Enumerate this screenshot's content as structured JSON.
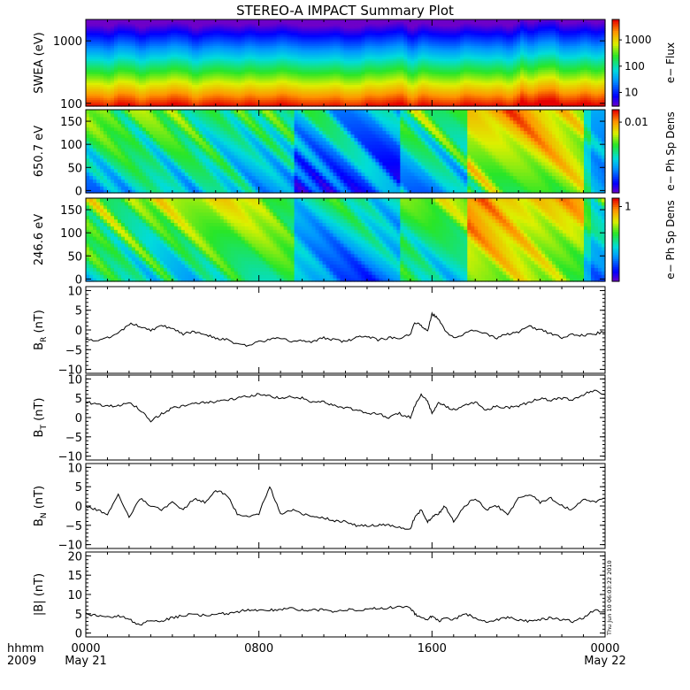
{
  "chart_data": {
    "title": "STEREO-A IMPACT Summary Plot",
    "timestamp": "Thu Jun 10 06:03:22 2010",
    "x_axis": {
      "ticks": [
        {
          "hours": 0,
          "label": "0000",
          "sub": "May 21"
        },
        {
          "hours": 8,
          "label": "0800",
          "sub": ""
        },
        {
          "hours": 16,
          "label": "1600",
          "sub": ""
        },
        {
          "hours": 24,
          "label": "0000",
          "sub": "May 22"
        }
      ],
      "left_label": "hhmm",
      "left_sub": "2009",
      "range_hours": [
        0,
        24
      ]
    },
    "panels": [
      {
        "type": "heatmap",
        "ylabel": "SWEA (eV)",
        "yscale": "log",
        "ylim": [
          90,
          2200
        ],
        "yticks": [
          {
            "v": 100,
            "label": "100"
          },
          {
            "v": 1000,
            "label": "1000"
          }
        ],
        "colorbar": {
          "label": "e− Flux",
          "scale": "log",
          "ticks": [
            {
              "v": 10,
              "label": "10"
            },
            {
              "v": 100,
              "label": "100"
            },
            {
              "v": 1000,
              "label": "1000"
            }
          ],
          "range": [
            3,
            6000
          ]
        }
      },
      {
        "type": "heatmap",
        "ylabel": "650.7 eV",
        "yscale": "linear",
        "ylim": [
          -5,
          175
        ],
        "yticks": [
          {
            "v": 0,
            "label": "0"
          },
          {
            "v": 50,
            "label": "50"
          },
          {
            "v": 100,
            "label": "100"
          },
          {
            "v": 150,
            "label": "150"
          }
        ],
        "colorbar": {
          "label": "e− Ph Sp Dens",
          "scale": "log",
          "ticks": [
            {
              "v": 0.01,
              "label": "0.01"
            }
          ],
          "range": [
            0.001,
            0.015
          ]
        }
      },
      {
        "type": "heatmap",
        "ylabel": "246.6 eV",
        "yscale": "linear",
        "ylim": [
          -5,
          175
        ],
        "yticks": [
          {
            "v": 0,
            "label": "0"
          },
          {
            "v": 50,
            "label": "50"
          },
          {
            "v": 100,
            "label": "100"
          },
          {
            "v": 150,
            "label": "150"
          }
        ],
        "colorbar": {
          "label": "e− Ph Sp Dens",
          "scale": "log",
          "ticks": [
            {
              "v": 1,
              "label": "1"
            }
          ],
          "range": [
            0.05,
            1.4
          ]
        }
      },
      {
        "type": "line",
        "ylabel": "B",
        "ylabel_sub": "R",
        "ylabel_unit": "(nT)",
        "ylim": [
          -11,
          11
        ],
        "yticks": [
          {
            "v": -10,
            "label": "−10"
          },
          {
            "v": -5,
            "label": "−5"
          },
          {
            "v": 0,
            "label": "0"
          },
          {
            "v": 5,
            "label": "5"
          },
          {
            "v": 10,
            "label": "10"
          }
        ],
        "x": [
          0,
          0.5,
          1,
          1.5,
          2,
          2.5,
          3,
          3.5,
          4,
          4.5,
          5,
          5.5,
          6,
          6.5,
          7,
          7.5,
          8,
          8.5,
          9,
          9.5,
          10,
          10.5,
          11,
          11.5,
          12,
          12.5,
          13,
          13.5,
          14,
          14.5,
          15,
          15.2,
          15.5,
          15.8,
          16,
          16.3,
          16.6,
          17,
          17.5,
          18,
          18.5,
          19,
          19.5,
          20,
          20.5,
          21,
          21.5,
          22,
          22.5,
          23,
          23.5,
          24
        ],
        "y": [
          -2,
          -3,
          -2,
          -1,
          1.5,
          1,
          0,
          1,
          0.5,
          -1,
          -0.5,
          -1,
          -2,
          -2.5,
          -3.5,
          -4,
          -3,
          -2.5,
          -2,
          -3,
          -2.5,
          -3,
          -2,
          -2.5,
          -3,
          -2,
          -1.5,
          -2.5,
          -2,
          -2,
          -1,
          2,
          1,
          0,
          4,
          3,
          0,
          -2,
          -1,
          0,
          -1,
          -2,
          -1,
          -0.5,
          1,
          0,
          -1,
          -2,
          -1,
          -1.5,
          -1,
          -0.5
        ]
      },
      {
        "type": "line",
        "ylabel": "B",
        "ylabel_sub": "T",
        "ylabel_unit": "(nT)",
        "ylim": [
          -11,
          11
        ],
        "yticks": [
          {
            "v": -10,
            "label": "−10"
          },
          {
            "v": -5,
            "label": "−5"
          },
          {
            "v": 0,
            "label": "0"
          },
          {
            "v": 5,
            "label": "5"
          },
          {
            "v": 10,
            "label": "10"
          }
        ],
        "x": [
          0,
          0.5,
          1,
          1.5,
          2,
          2.5,
          3,
          3.5,
          4,
          4.5,
          5,
          5.5,
          6,
          6.5,
          7,
          7.5,
          8,
          8.5,
          9,
          9.5,
          10,
          10.5,
          11,
          11.5,
          12,
          12.5,
          13,
          13.5,
          14,
          14.5,
          15,
          15.2,
          15.5,
          15.8,
          16,
          16.3,
          16.6,
          17,
          17.5,
          18,
          18.5,
          19,
          19.5,
          20,
          20.5,
          21,
          21.5,
          22,
          22.5,
          23,
          23.5,
          24
        ],
        "y": [
          4,
          3.5,
          3,
          3,
          4,
          2,
          -1,
          1,
          2.5,
          3,
          3.5,
          4,
          4,
          4.5,
          5,
          5.5,
          6,
          5.5,
          5,
          5.5,
          5,
          4,
          4,
          3,
          2.5,
          2,
          1,
          1,
          0,
          1,
          0,
          3,
          6,
          4,
          1,
          4,
          3,
          2,
          3,
          4,
          2,
          3,
          2.5,
          3,
          4,
          5,
          4.5,
          5,
          4.5,
          6,
          7,
          6
        ]
      },
      {
        "type": "line",
        "ylabel": "B",
        "ylabel_sub": "N",
        "ylabel_unit": "(nT)",
        "ylim": [
          -11,
          11
        ],
        "yticks": [
          {
            "v": -10,
            "label": "−10"
          },
          {
            "v": -5,
            "label": "−5"
          },
          {
            "v": 0,
            "label": "0"
          },
          {
            "v": 5,
            "label": "5"
          },
          {
            "v": 10,
            "label": "10"
          }
        ],
        "x": [
          0,
          0.5,
          1,
          1.5,
          2,
          2.5,
          3,
          3.5,
          4,
          4.5,
          5,
          5.5,
          6,
          6.5,
          7,
          7.5,
          8,
          8.5,
          9,
          9.5,
          10,
          10.5,
          11,
          11.5,
          12,
          12.5,
          13,
          13.5,
          14,
          14.5,
          15,
          15.2,
          15.5,
          15.8,
          16,
          16.3,
          16.6,
          17,
          17.5,
          18,
          18.5,
          19,
          19.5,
          20,
          20.5,
          21,
          21.5,
          22,
          22.5,
          23,
          23.5,
          24
        ],
        "y": [
          0,
          -1,
          -2,
          3,
          -3,
          2,
          0,
          -1,
          1,
          -1,
          2,
          1,
          4,
          3,
          -2,
          -3,
          -2,
          5,
          -2,
          -1,
          -2,
          -3,
          -3,
          -4,
          -4,
          -5,
          -5,
          -5,
          -5,
          -5.5,
          -6,
          -3,
          -1,
          -4,
          -3,
          -2,
          0,
          -4,
          0,
          2,
          -1,
          0,
          -2,
          2,
          3,
          1,
          2,
          0,
          -1,
          2,
          1,
          2
        ]
      },
      {
        "type": "line",
        "ylabel": "|B|",
        "ylabel_sub": "",
        "ylabel_unit": "(nT)",
        "ylim": [
          -1,
          21
        ],
        "yticks": [
          {
            "v": 0,
            "label": "0"
          },
          {
            "v": 5,
            "label": "5"
          },
          {
            "v": 10,
            "label": "10"
          },
          {
            "v": 15,
            "label": "15"
          },
          {
            "v": 20,
            "label": "20"
          }
        ],
        "x": [
          0,
          0.5,
          1,
          1.5,
          2,
          2.5,
          3,
          3.5,
          4,
          4.5,
          5,
          5.5,
          6,
          6.5,
          7,
          7.5,
          8,
          8.5,
          9,
          9.5,
          10,
          10.5,
          11,
          11.5,
          12,
          12.5,
          13,
          13.5,
          14,
          14.5,
          15,
          15.2,
          15.5,
          15.8,
          16,
          16.3,
          16.6,
          17,
          17.5,
          18,
          18.5,
          19,
          19.5,
          20,
          20.5,
          21,
          21.5,
          22,
          22.5,
          23,
          23.5,
          24
        ],
        "y": [
          5,
          4.5,
          4,
          4.5,
          3.5,
          2,
          3.5,
          3,
          4,
          4.5,
          5,
          4.5,
          5,
          5,
          5.5,
          6,
          6,
          6,
          6,
          6.5,
          6,
          6,
          6,
          5.5,
          6,
          6,
          6,
          6.5,
          6.5,
          7,
          6.5,
          5,
          4,
          3.5,
          4.5,
          3,
          4,
          3.5,
          5,
          4,
          3,
          3.5,
          4,
          3.5,
          3,
          3.5,
          4,
          3.5,
          3,
          4,
          6,
          5.5
        ]
      }
    ]
  }
}
